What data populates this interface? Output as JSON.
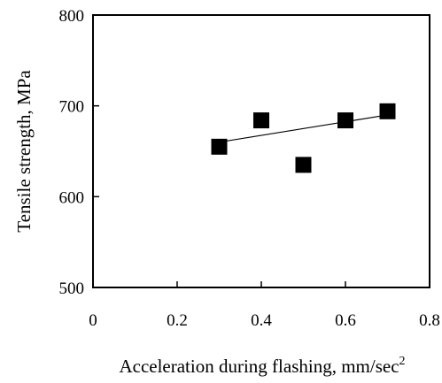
{
  "chart_data": {
    "type": "scatter",
    "title": "",
    "xlabel": "Acceleration during flashing, mm/sec",
    "xlabel_superscript": "2",
    "ylabel": "Tensile strength, MPa",
    "xlim": [
      0,
      0.8
    ],
    "ylim": [
      500,
      800
    ],
    "xticks": [
      0,
      0.2,
      0.4,
      0.6,
      0.8
    ],
    "xtick_labels": [
      "0",
      "0.2",
      "0.4",
      "0.6",
      "0.8"
    ],
    "yticks": [
      500,
      600,
      700,
      800
    ],
    "ytick_labels": [
      "500",
      "600",
      "700",
      "800"
    ],
    "grid": false,
    "legend": false,
    "marker": "filled-square",
    "marker_color": "#000000",
    "series": [
      {
        "x": [
          0.3,
          0.4,
          0.5,
          0.6,
          0.7
        ],
        "y": [
          655,
          684,
          635,
          684,
          694
        ]
      }
    ],
    "trendline": {
      "type": "linear",
      "x": [
        0.3,
        0.7
      ],
      "y": [
        660,
        690
      ]
    }
  }
}
